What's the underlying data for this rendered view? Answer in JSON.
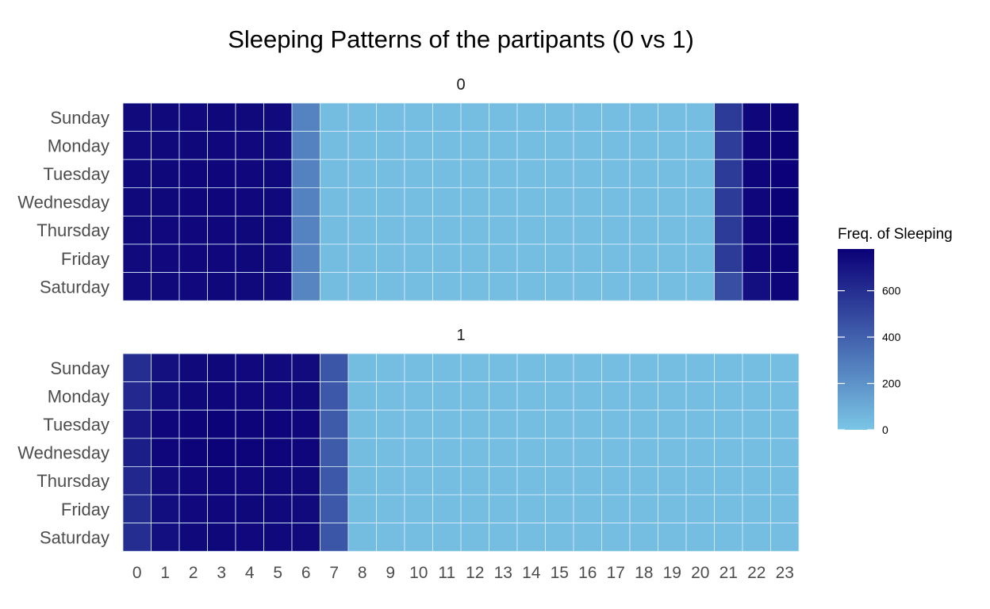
{
  "chart_data": {
    "type": "heatmap",
    "title": "Sleeping Patterns of the partipants (0 vs 1)",
    "xlabel": "",
    "ylabel": "",
    "x_categories": [
      "0",
      "1",
      "2",
      "3",
      "4",
      "5",
      "6",
      "7",
      "8",
      "9",
      "10",
      "11",
      "12",
      "13",
      "14",
      "15",
      "16",
      "17",
      "18",
      "19",
      "20",
      "21",
      "22",
      "23"
    ],
    "y_categories": [
      "Sunday",
      "Monday",
      "Tuesday",
      "Wednesday",
      "Thursday",
      "Friday",
      "Saturday"
    ],
    "facets": [
      {
        "label": "0",
        "rows": [
          [
            740,
            745,
            748,
            750,
            745,
            740,
            260,
            35,
            30,
            30,
            30,
            30,
            30,
            30,
            30,
            30,
            30,
            30,
            30,
            30,
            30,
            550,
            755,
            770
          ],
          [
            742,
            746,
            750,
            752,
            748,
            742,
            265,
            35,
            30,
            30,
            30,
            30,
            30,
            30,
            30,
            30,
            30,
            30,
            30,
            30,
            30,
            540,
            760,
            772
          ],
          [
            745,
            750,
            755,
            757,
            752,
            745,
            270,
            35,
            30,
            30,
            30,
            30,
            30,
            30,
            30,
            30,
            30,
            30,
            30,
            30,
            30,
            545,
            762,
            775
          ],
          [
            745,
            750,
            755,
            756,
            752,
            745,
            265,
            35,
            30,
            30,
            30,
            30,
            30,
            30,
            30,
            30,
            30,
            30,
            30,
            30,
            30,
            545,
            758,
            772
          ],
          [
            743,
            748,
            752,
            754,
            750,
            743,
            262,
            35,
            30,
            30,
            30,
            30,
            30,
            30,
            30,
            30,
            30,
            30,
            30,
            30,
            30,
            550,
            757,
            771
          ],
          [
            742,
            747,
            751,
            753,
            749,
            742,
            262,
            35,
            30,
            30,
            30,
            30,
            30,
            30,
            30,
            30,
            30,
            30,
            30,
            30,
            30,
            545,
            755,
            770
          ],
          [
            740,
            745,
            748,
            750,
            746,
            740,
            255,
            35,
            30,
            30,
            30,
            30,
            30,
            30,
            30,
            30,
            30,
            30,
            30,
            30,
            30,
            470,
            720,
            760
          ]
        ]
      },
      {
        "label": "1",
        "rows": [
          [
            600,
            715,
            745,
            750,
            748,
            742,
            738,
            440,
            35,
            30,
            30,
            30,
            30,
            30,
            30,
            30,
            30,
            30,
            30,
            30,
            30,
            30,
            30,
            30
          ],
          [
            620,
            730,
            750,
            755,
            752,
            748,
            743,
            430,
            35,
            30,
            30,
            30,
            30,
            30,
            30,
            30,
            30,
            30,
            30,
            30,
            30,
            30,
            30,
            30
          ],
          [
            690,
            755,
            765,
            768,
            766,
            762,
            758,
            420,
            35,
            30,
            30,
            30,
            30,
            30,
            30,
            30,
            30,
            30,
            30,
            30,
            30,
            30,
            30,
            30
          ],
          [
            660,
            755,
            765,
            768,
            766,
            762,
            758,
            420,
            35,
            30,
            30,
            30,
            30,
            30,
            30,
            30,
            30,
            30,
            30,
            30,
            30,
            30,
            30,
            30
          ],
          [
            625,
            735,
            752,
            757,
            754,
            750,
            745,
            430,
            35,
            30,
            30,
            30,
            30,
            30,
            30,
            30,
            30,
            30,
            30,
            30,
            30,
            30,
            30,
            30
          ],
          [
            610,
            725,
            748,
            752,
            750,
            746,
            742,
            430,
            35,
            30,
            30,
            30,
            30,
            30,
            30,
            30,
            30,
            30,
            30,
            30,
            30,
            30,
            30,
            30
          ],
          [
            600,
            720,
            745,
            750,
            748,
            744,
            740,
            440,
            35,
            30,
            30,
            30,
            30,
            30,
            30,
            30,
            30,
            30,
            30,
            30,
            30,
            30,
            30,
            30
          ]
        ]
      }
    ],
    "legend": {
      "title": "Freq. of Sleeping",
      "ticks": [
        "0",
        "200",
        "400",
        "600"
      ],
      "min": 0,
      "max": 780,
      "low_color": "#7ac5e6",
      "high_color": "#0b0077"
    },
    "grid": false
  }
}
